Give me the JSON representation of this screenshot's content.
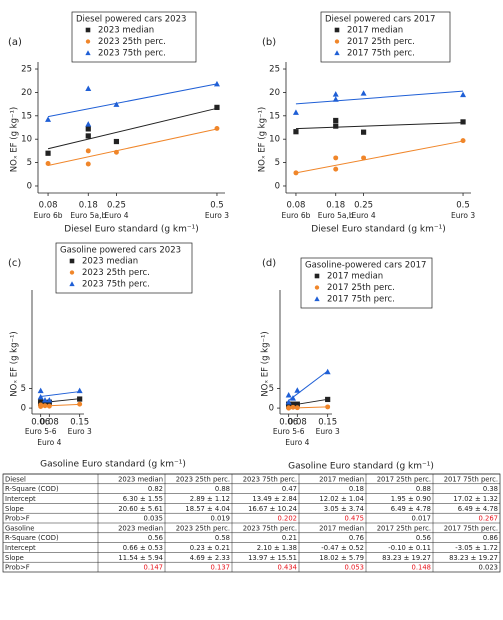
{
  "chart_data": [
    {
      "type": "scatter",
      "panel_label": "(a)",
      "title": "Diesel powered cars 2023",
      "xlabel": "Diesel Euro standard (g km⁻¹)",
      "ylabel": "NOₓ EF (g kg⁻¹)",
      "x": [
        0.08,
        0.18,
        0.18,
        0.25,
        0.5
      ],
      "xlim": [
        0.055,
        0.52
      ],
      "xticks": [
        0.08,
        0.18,
        0.25,
        0.5
      ],
      "xtick_sublabels": [
        "Euro 6b",
        "Euro 5a,b",
        "Euro 4",
        "Euro 3"
      ],
      "ylim": [
        -1.5,
        26.5
      ],
      "yticks": [
        0,
        5,
        10,
        15,
        20,
        25
      ],
      "fit_x": [
        0.08,
        0.5
      ],
      "series": [
        {
          "name": "2023 median",
          "color": "#222222",
          "marker": "square",
          "values": [
            7.0,
            12.2,
            10.7,
            9.5,
            16.8
          ],
          "fit": [
            7.95,
            16.6
          ]
        },
        {
          "name": "2023 25th perc.",
          "color": "#f0862a",
          "marker": "circle",
          "values": [
            4.8,
            7.5,
            4.7,
            7.2,
            12.3
          ],
          "fit": [
            4.38,
            12.18
          ]
        },
        {
          "name": "2023 75th perc.",
          "color": "#1f5fd6",
          "marker": "triangle",
          "values": [
            14.2,
            20.8,
            13.2,
            17.4,
            21.8
          ],
          "fit": [
            14.82,
            21.83
          ]
        }
      ]
    },
    {
      "type": "scatter",
      "panel_label": "(b)",
      "title": "Diesel powered cars 2017",
      "xlabel": "Diesel Euro standard (g km⁻¹)",
      "ylabel": "NOₓ EF (g kg⁻¹)",
      "x": [
        0.08,
        0.18,
        0.18,
        0.25,
        0.5
      ],
      "xlim": [
        0.055,
        0.52
      ],
      "xticks": [
        0.08,
        0.18,
        0.25,
        0.5
      ],
      "xtick_sublabels": [
        "Euro 6b",
        "Euro 5a,b",
        "Euro 4",
        "Euro 3"
      ],
      "ylim": [
        -1.5,
        26.5
      ],
      "yticks": [
        0,
        5,
        10,
        15,
        20,
        25
      ],
      "fit_x": [
        0.08,
        0.5
      ],
      "series": [
        {
          "name": "2017 median",
          "color": "#222222",
          "marker": "square",
          "values": [
            11.6,
            14.0,
            12.8,
            11.5,
            13.7
          ],
          "fit": [
            12.26,
            13.55
          ]
        },
        {
          "name": "2017 25th perc.",
          "color": "#f0862a",
          "marker": "circle",
          "values": [
            2.8,
            6.0,
            3.6,
            6.0,
            9.7
          ],
          "fit": [
            2.8,
            9.6
          ]
        },
        {
          "name": "2017 75th perc.",
          "color": "#1f5fd6",
          "marker": "triangle",
          "values": [
            15.7,
            19.6,
            18.5,
            19.8,
            19.5
          ],
          "fit": [
            17.54,
            20.27
          ]
        }
      ]
    },
    {
      "type": "scatter",
      "panel_label": "(c)",
      "title": "Gasoline powered cars 2023",
      "xlabel": "Gasoline Euro standard (g km⁻¹)",
      "ylabel": "NOₓ EF (g kg⁻¹)",
      "x": [
        0.06,
        0.06,
        0.07,
        0.08,
        0.15
      ],
      "xlim": [
        0.04,
        0.16
      ],
      "xticks": [
        0.06,
        0.08,
        0.15
      ],
      "xtick_sublabels": [
        "Euro 5-6",
        "Euro 4",
        "Euro 3"
      ],
      "ylim": [
        -1.5,
        30
      ],
      "yticks": [
        0,
        5
      ],
      "fit_x": [
        0.06,
        0.15
      ],
      "series": [
        {
          "name": "2023 median",
          "color": "#222222",
          "marker": "square",
          "values": [
            1.2,
            1.6,
            1.4,
            1.5,
            2.3
          ],
          "fit": [
            1.35,
            2.39
          ]
        },
        {
          "name": "2023 25th perc.",
          "color": "#f0862a",
          "marker": "circle",
          "values": [
            0.4,
            0.8,
            0.6,
            0.5,
            1.0
          ],
          "fit": [
            0.51,
            0.93
          ]
        },
        {
          "name": "2023 75th perc.",
          "color": "#1f5fd6",
          "marker": "triangle",
          "values": [
            4.4,
            2.8,
            2.0,
            2.0,
            4.4
          ],
          "fit": [
            2.94,
            4.2
          ]
        }
      ]
    },
    {
      "type": "scatter",
      "panel_label": "(d)",
      "title": "Gasoline-powered cars 2017",
      "xlabel": "Gasoline Euro standard (g km⁻¹)",
      "ylabel": "NOₓ EF (g kg⁻¹)",
      "x": [
        0.06,
        0.06,
        0.07,
        0.08,
        0.15
      ],
      "xlim": [
        0.04,
        0.16
      ],
      "xticks": [
        0.06,
        0.08,
        0.15
      ],
      "xtick_sublabels": [
        "Euro 5-6",
        "Euro 4",
        "Euro 3"
      ],
      "ylim": [
        -1.5,
        30
      ],
      "yticks": [
        0,
        5
      ],
      "fit_x": [
        0.06,
        0.15
      ],
      "series": [
        {
          "name": "2017 median",
          "color": "#222222",
          "marker": "square",
          "values": [
            0.5,
            1.0,
            1.0,
            1.0,
            2.2
          ],
          "fit": [
            0.61,
            2.23
          ]
        },
        {
          "name": "2017 25th perc.",
          "color": "#f0862a",
          "marker": "circle",
          "values": [
            0.0,
            0.1,
            0.2,
            0.1,
            0.3
          ],
          "fit": [
            0.0,
            0.3
          ]
        },
        {
          "name": "2017 75th perc.",
          "color": "#1f5fd6",
          "marker": "triangle",
          "values": [
            3.3,
            1.5,
            2.5,
            4.5,
            9.2
          ],
          "fit": [
            1.94,
            9.43
          ]
        }
      ]
    }
  ],
  "table": {
    "highlight_color": "#e8141c",
    "sections": [
      {
        "header": [
          "Diesel",
          "2023 median",
          "2023 25th perc.",
          "2023 75th perc.",
          "2017 median",
          "2017 25th perc.",
          "2017 75th perc."
        ],
        "rows": [
          [
            "R-Square (COD)",
            "0.82",
            "0.88",
            "0.47",
            "0.18",
            "0.88",
            "0.38"
          ],
          [
            "Intercept",
            "6.30 ± 1.55",
            "2.89 ± 1.12",
            "13.49 ± 2.84",
            "12.02 ± 1.04",
            "1.95 ± 0.90",
            "17.02 ± 1.32"
          ],
          [
            "Slope",
            "20.60 ± 5.61",
            "18.57 ± 4.04",
            "16.67 ± 10.24",
            "3.05 ± 3.74",
            "6.49 ± 4.78",
            "6.49 ± 4.78"
          ],
          [
            "Prob>F",
            "0.035",
            "0.019",
            "0.202",
            "0.475",
            "0.017",
            "0.267"
          ]
        ],
        "highlight": [
          false,
          false,
          true,
          true,
          false,
          true
        ]
      },
      {
        "header": [
          "Gasoline",
          "2023 median",
          "2023 25th perc.",
          "2023 75th perc.",
          "2017 median",
          "2017 25th perc.",
          "2017 75th perc."
        ],
        "rows": [
          [
            "R-Square (COD)",
            "0.56",
            "0.58",
            "0.21",
            "0.76",
            "0.56",
            "0.86"
          ],
          [
            "Intercept",
            "0.66 ± 0.53",
            "0.23 ± 0.21",
            "2.10 ± 1.38",
            "-0.47 ± 0.52",
            "-0.10 ± 0.11",
            "-3.05 ± 1.72"
          ],
          [
            "Slope",
            "11.54 ± 5.94",
            "4.69 ± 2.33",
            "13.97 ± 15.51",
            "18.02 ± 5.79",
            "83.23 ± 19.27",
            "83.23 ± 19.27"
          ],
          [
            "Prob>F",
            "0.147",
            "0.137",
            "0.434",
            "0.053",
            "0.148",
            "0.023"
          ]
        ],
        "highlight": [
          true,
          true,
          true,
          true,
          true,
          false
        ]
      }
    ]
  }
}
